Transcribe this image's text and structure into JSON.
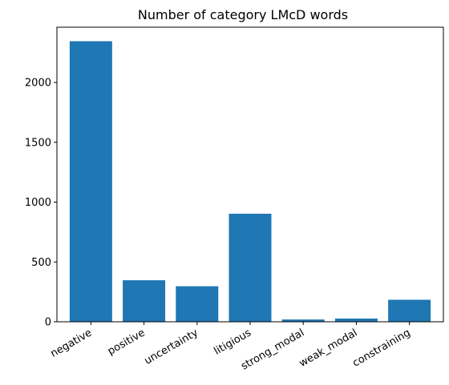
{
  "chart_data": {
    "type": "bar",
    "title": "Number of category LMcD words",
    "xlabel": "",
    "ylabel": "",
    "categories": [
      "negative",
      "positive",
      "uncertainty",
      "litigious",
      "strong_modal",
      "weak_modal",
      "constraining"
    ],
    "values": [
      2345,
      347,
      297,
      903,
      19,
      27,
      184
    ],
    "ylim": [
      0,
      2462
    ],
    "yticks": [
      0,
      500,
      1000,
      1500,
      2000
    ],
    "grid": false,
    "legend": "none",
    "bar_color": "#1f77b4"
  }
}
